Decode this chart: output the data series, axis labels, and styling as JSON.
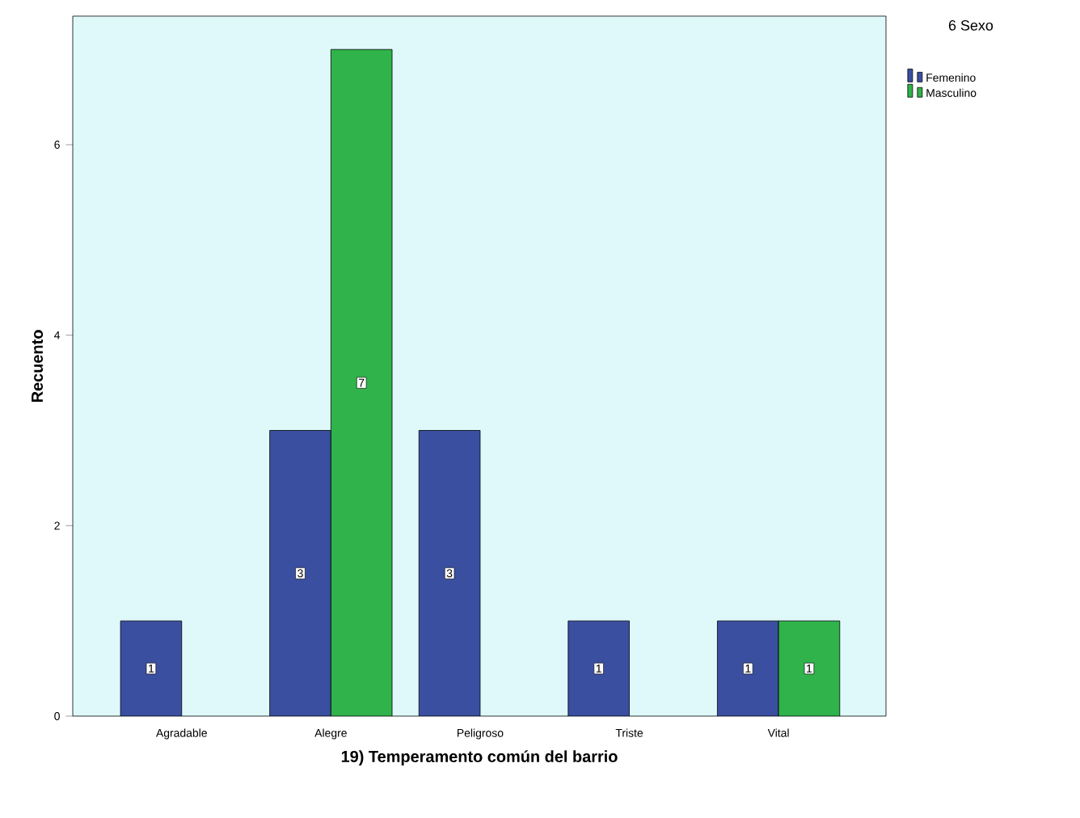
{
  "chart_data": {
    "type": "bar",
    "xlabel": "19) Temperamento común del barrio",
    "ylabel": "Recuento",
    "legend_title": "6 Sexo",
    "categories": [
      "Agradable",
      "Alegre",
      "Peligroso",
      "Triste",
      "Vital"
    ],
    "series": [
      {
        "name": "Femenino",
        "color": "#3a4fa0",
        "values": [
          1,
          3,
          3,
          1,
          1
        ]
      },
      {
        "name": "Masculino",
        "color": "#2fb34a",
        "values": [
          null,
          7,
          null,
          null,
          1
        ]
      }
    ],
    "ylim": [
      0,
      7.35
    ],
    "yticks": [
      0,
      2,
      4,
      6
    ],
    "data_labels": true,
    "legend": "top right",
    "grid": false
  }
}
